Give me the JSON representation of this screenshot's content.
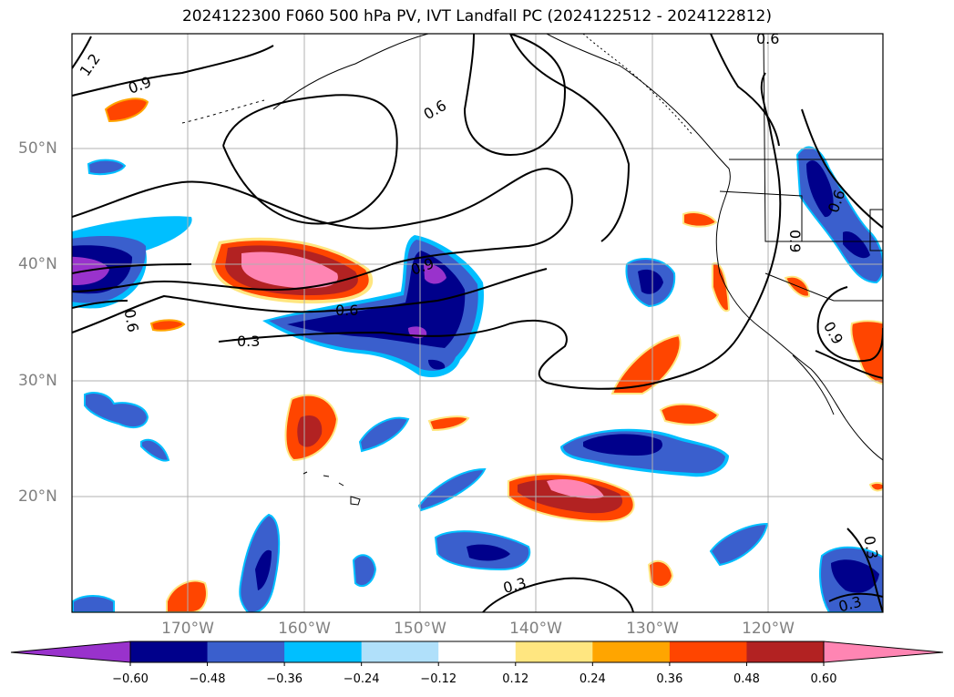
{
  "title": "2024122300 F060 500 hPa PV, IVT Landfall PC (2024122512 - 2024122812)",
  "lat_labels": [
    "50°N",
    "40°N",
    "30°N",
    "20°N"
  ],
  "lon_labels": [
    "170°W",
    "160°W",
    "150°W",
    "140°W",
    "130°W",
    "120°W"
  ],
  "contour_labels": [
    "1.2",
    "0.9",
    "0.6",
    "0.6",
    "0.6",
    "0.9",
    "0.6",
    "0.3",
    "0.9",
    "0.6",
    "0.9",
    "0.3",
    "0.3",
    "0.3"
  ],
  "colorbar": {
    "ticks": [
      "−0.60",
      "−0.48",
      "−0.36",
      "−0.24",
      "−0.12",
      "0.12",
      "0.24",
      "0.36",
      "0.48",
      "0.60"
    ],
    "colors": [
      "#9932cc",
      "#00008b",
      "#3a5fcd",
      "#00bfff",
      "#b0e0fa",
      "#ffffff",
      "#ffe680",
      "#ffa500",
      "#ff4500",
      "#b22222",
      "#ff85b3"
    ]
  }
}
